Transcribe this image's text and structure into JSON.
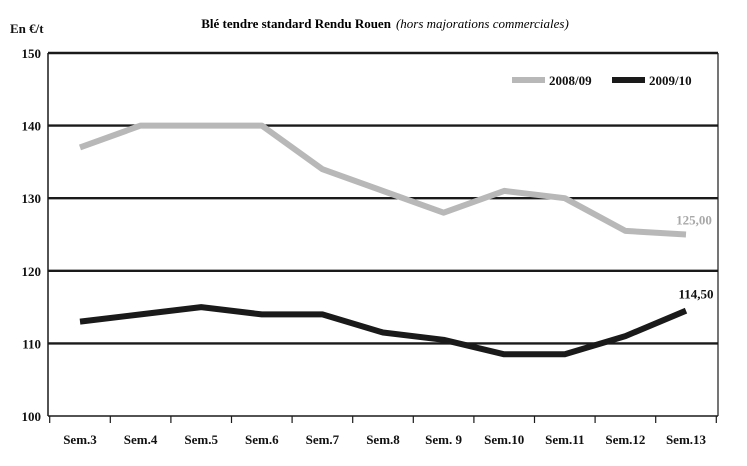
{
  "chart_data": {
    "type": "line",
    "title": "Blé tendre standard Rendu Rouen",
    "subtitle": "(hors majorations commerciales)",
    "ylabel": "En €/t",
    "xlabel": "",
    "ylim": [
      100,
      150
    ],
    "yticks": [
      100,
      110,
      120,
      130,
      140,
      150
    ],
    "grid": true,
    "legend_position": "top-right",
    "categories": [
      "Sem.3",
      "Sem.4",
      "Sem.5",
      "Sem.6",
      "Sem.7",
      "Sem.8",
      "Sem. 9",
      "Sem.10",
      "Sem.11",
      "Sem.12",
      "Sem.13"
    ],
    "series": [
      {
        "name": "2008/09",
        "color": "#b8b8b8",
        "values": [
          137,
          140,
          140,
          140,
          134,
          131,
          128,
          131,
          130,
          125.5,
          125
        ],
        "end_label": "125,00"
      },
      {
        "name": "2009/10",
        "color": "#1a1a1a",
        "values": [
          113,
          114,
          115,
          114,
          114,
          111.5,
          110.5,
          108.5,
          108.5,
          111,
          114.5
        ],
        "end_label": "114,50"
      }
    ]
  }
}
